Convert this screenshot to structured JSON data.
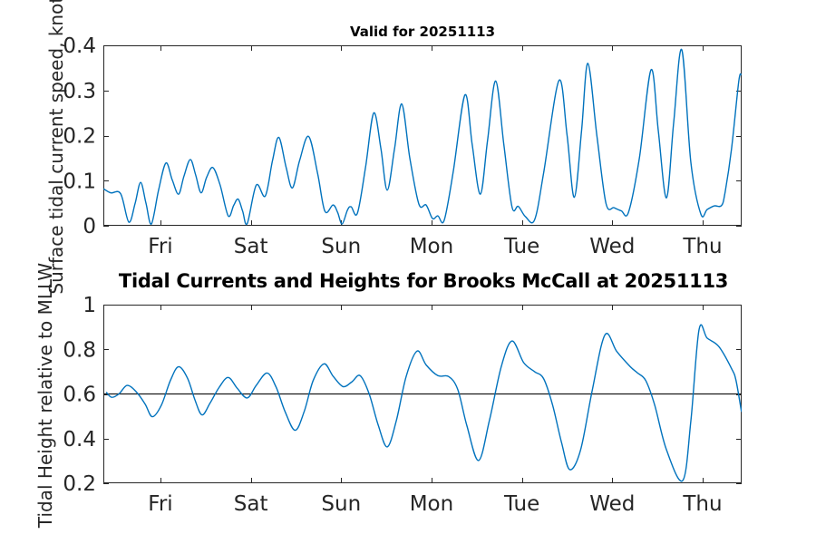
{
  "figure": {
    "bg": "#ffffff",
    "accent": "#0072bd",
    "axis_color": "#262626",
    "tick_label_color": "#262626",
    "reference_line_color": "#1a1a1a"
  },
  "chart_data": [
    {
      "type": "line",
      "title": "Valid for 20251113",
      "ylabel": "Surface tidal current speed, knots",
      "xlabel": "",
      "legend": null,
      "grid": false,
      "xlim": [
        0.368,
        7.432
      ],
      "ylim": [
        0,
        0.4
      ],
      "yticks": [
        0,
        0.1,
        0.2,
        0.3,
        0.4
      ],
      "ytick_labels": [
        "0",
        "0.1",
        "0.2",
        "0.3",
        "0.4"
      ],
      "xticks": [
        1,
        2,
        3,
        4,
        5,
        6,
        7
      ],
      "xtick_labels": [
        "Fri",
        "Sat",
        "Sun",
        "Mon",
        "Tue",
        "Wed",
        "Thu"
      ],
      "line_color": "#0072bd",
      "points": [
        [
          0.37,
          0.082
        ],
        [
          0.45,
          0.073
        ],
        [
          0.56,
          0.071
        ],
        [
          0.65,
          0.008
        ],
        [
          0.72,
          0.05
        ],
        [
          0.78,
          0.096
        ],
        [
          0.84,
          0.05
        ],
        [
          0.9,
          0.004
        ],
        [
          0.98,
          0.08
        ],
        [
          1.06,
          0.139
        ],
        [
          1.13,
          0.102
        ],
        [
          1.2,
          0.07
        ],
        [
          1.26,
          0.11
        ],
        [
          1.33,
          0.147
        ],
        [
          1.39,
          0.112
        ],
        [
          1.45,
          0.073
        ],
        [
          1.51,
          0.107
        ],
        [
          1.58,
          0.129
        ],
        [
          1.66,
          0.09
        ],
        [
          1.75,
          0.022
        ],
        [
          1.81,
          0.045
        ],
        [
          1.86,
          0.059
        ],
        [
          1.91,
          0.032
        ],
        [
          1.96,
          0.005
        ],
        [
          2.06,
          0.09
        ],
        [
          2.16,
          0.066
        ],
        [
          2.24,
          0.145
        ],
        [
          2.31,
          0.196
        ],
        [
          2.39,
          0.13
        ],
        [
          2.46,
          0.084
        ],
        [
          2.54,
          0.145
        ],
        [
          2.64,
          0.198
        ],
        [
          2.74,
          0.115
        ],
        [
          2.82,
          0.032
        ],
        [
          2.91,
          0.046
        ],
        [
          2.96,
          0.03
        ],
        [
          3.01,
          0.004
        ],
        [
          3.07,
          0.035
        ],
        [
          3.11,
          0.042
        ],
        [
          3.18,
          0.028
        ],
        [
          3.27,
          0.13
        ],
        [
          3.36,
          0.25
        ],
        [
          3.44,
          0.17
        ],
        [
          3.51,
          0.079
        ],
        [
          3.59,
          0.17
        ],
        [
          3.67,
          0.27
        ],
        [
          3.76,
          0.15
        ],
        [
          3.86,
          0.048
        ],
        [
          3.94,
          0.046
        ],
        [
          4.01,
          0.016
        ],
        [
          4.07,
          0.022
        ],
        [
          4.14,
          0.012
        ],
        [
          4.24,
          0.12
        ],
        [
          4.37,
          0.29
        ],
        [
          4.45,
          0.18
        ],
        [
          4.54,
          0.07
        ],
        [
          4.62,
          0.19
        ],
        [
          4.71,
          0.321
        ],
        [
          4.8,
          0.18
        ],
        [
          4.89,
          0.042
        ],
        [
          4.96,
          0.043
        ],
        [
          5.04,
          0.02
        ],
        [
          5.14,
          0.013
        ],
        [
          5.24,
          0.116
        ],
        [
          5.41,
          0.322
        ],
        [
          5.5,
          0.2
        ],
        [
          5.58,
          0.063
        ],
        [
          5.66,
          0.21
        ],
        [
          5.73,
          0.36
        ],
        [
          5.83,
          0.2
        ],
        [
          5.93,
          0.05
        ],
        [
          6.02,
          0.04
        ],
        [
          6.1,
          0.033
        ],
        [
          6.18,
          0.03
        ],
        [
          6.3,
          0.15
        ],
        [
          6.43,
          0.346
        ],
        [
          6.51,
          0.21
        ],
        [
          6.6,
          0.062
        ],
        [
          6.68,
          0.23
        ],
        [
          6.77,
          0.39
        ],
        [
          6.87,
          0.14
        ],
        [
          6.98,
          0.026
        ],
        [
          7.05,
          0.036
        ],
        [
          7.13,
          0.044
        ],
        [
          7.21,
          0.045
        ],
        [
          7.25,
          0.076
        ],
        [
          7.32,
          0.17
        ],
        [
          7.4,
          0.32
        ],
        [
          7.43,
          0.335
        ]
      ]
    },
    {
      "type": "line",
      "title": "Tidal Currents and Heights for Brooks McCall at 20251113",
      "ylabel": "Tidal Height relative to MLLW",
      "xlabel": "",
      "legend": null,
      "grid": false,
      "xlim": [
        0.368,
        7.432
      ],
      "ylim": [
        0.2,
        1.0
      ],
      "yticks": [
        0.2,
        0.4,
        0.6,
        0.8,
        1
      ],
      "ytick_labels": [
        "0.2",
        "0.4",
        "0.6",
        "0.8",
        "1"
      ],
      "xticks": [
        1,
        2,
        3,
        4,
        5,
        6,
        7
      ],
      "xtick_labels": [
        "Fri",
        "Sat",
        "Sun",
        "Mon",
        "Tue",
        "Wed",
        "Thu"
      ],
      "reference_hline": 0.6,
      "line_color": "#0072bd",
      "points": [
        [
          0.4,
          0.608
        ],
        [
          0.46,
          0.585
        ],
        [
          0.54,
          0.6
        ],
        [
          0.63,
          0.638
        ],
        [
          0.73,
          0.61
        ],
        [
          0.83,
          0.555
        ],
        [
          0.91,
          0.498
        ],
        [
          1.01,
          0.55
        ],
        [
          1.11,
          0.66
        ],
        [
          1.2,
          0.722
        ],
        [
          1.3,
          0.67
        ],
        [
          1.38,
          0.575
        ],
        [
          1.46,
          0.506
        ],
        [
          1.55,
          0.56
        ],
        [
          1.65,
          0.63
        ],
        [
          1.75,
          0.674
        ],
        [
          1.85,
          0.625
        ],
        [
          1.96,
          0.582
        ],
        [
          2.06,
          0.638
        ],
        [
          2.18,
          0.694
        ],
        [
          2.28,
          0.63
        ],
        [
          2.38,
          0.52
        ],
        [
          2.49,
          0.437
        ],
        [
          2.59,
          0.52
        ],
        [
          2.69,
          0.66
        ],
        [
          2.81,
          0.735
        ],
        [
          2.91,
          0.68
        ],
        [
          3.02,
          0.633
        ],
        [
          3.12,
          0.655
        ],
        [
          3.21,
          0.682
        ],
        [
          3.31,
          0.6
        ],
        [
          3.41,
          0.46
        ],
        [
          3.51,
          0.363
        ],
        [
          3.61,
          0.48
        ],
        [
          3.72,
          0.68
        ],
        [
          3.84,
          0.792
        ],
        [
          3.94,
          0.73
        ],
        [
          4.07,
          0.682
        ],
        [
          4.19,
          0.678
        ],
        [
          4.29,
          0.62
        ],
        [
          4.39,
          0.46
        ],
        [
          4.52,
          0.302
        ],
        [
          4.64,
          0.48
        ],
        [
          4.77,
          0.72
        ],
        [
          4.89,
          0.837
        ],
        [
          5.02,
          0.74
        ],
        [
          5.14,
          0.7
        ],
        [
          5.24,
          0.669
        ],
        [
          5.34,
          0.55
        ],
        [
          5.44,
          0.38
        ],
        [
          5.53,
          0.261
        ],
        [
          5.65,
          0.35
        ],
        [
          5.78,
          0.62
        ],
        [
          5.92,
          0.865
        ],
        [
          6.05,
          0.79
        ],
        [
          6.2,
          0.722
        ],
        [
          6.28,
          0.694
        ],
        [
          6.37,
          0.66
        ],
        [
          6.47,
          0.55
        ],
        [
          6.6,
          0.35
        ],
        [
          6.78,
          0.212
        ],
        [
          6.87,
          0.48
        ],
        [
          6.96,
          0.888
        ],
        [
          7.05,
          0.85
        ],
        [
          7.18,
          0.812
        ],
        [
          7.32,
          0.714
        ],
        [
          7.37,
          0.66
        ],
        [
          7.43,
          0.52
        ]
      ]
    }
  ]
}
